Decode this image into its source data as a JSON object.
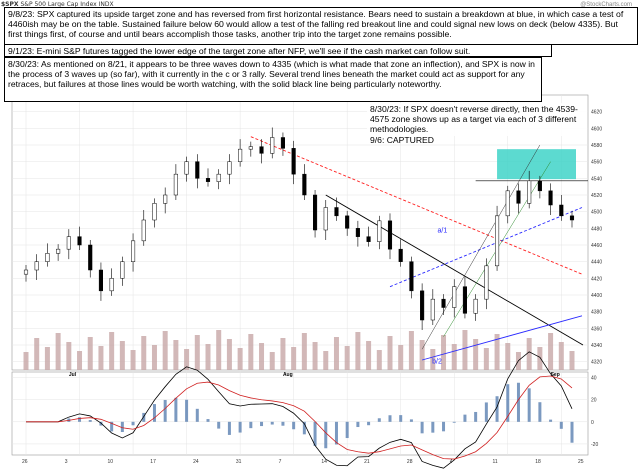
{
  "header": {
    "symbol": "$SPX",
    "name": "S&P 500 Large Cap Index",
    "exchange": "INDX",
    "watermark": "@StockCharts.com"
  },
  "annotations": [
    {
      "id": "note-9-8",
      "date": "9/8/23:",
      "text": "SPX captured its upside target zone and has reversed from first horizontal resistance.  Bears need to sustain a breakdown at blue, in which case a test of 4460ish may be on the table.  Sustained failure below 60 would allow a test of the falling red breakout line and could signal new lows on deck (below 4335).  But first things first, of course and until bears accomplish those tasks, another trip into the target zone remains possible."
    },
    {
      "id": "note-9-1",
      "date": "9/1/23:",
      "text": "E-mini S&P futures tagged the lower edge of the target zone after NFP, we'll see if the cash market can follow suit."
    },
    {
      "id": "note-8-30a",
      "date": "8/30/23:",
      "text": "As mentioned on 8/21, it appears to be three waves down to 4335 (which is what made that zone an inflection), and SPX is now in the process of 3 waves up (so far), with it currently in the c or 3 rally.  Several trend lines beneath the market could act as support for any retraces, but failures at those lines would be worth watching, with the solid black line being particularly noteworthy."
    },
    {
      "id": "note-8-30b",
      "date": "8/30/23:",
      "text": "If SPX doesn't reverse directly, then the 4539-4575 zone shows up as a target via each of 3 different methodologies.",
      "line2": "9/6:  CAPTURED"
    }
  ],
  "wave_labels": [
    "a/1",
    "b/2"
  ],
  "price_scale": [
    "4620",
    "4600",
    "4580",
    "4560",
    "4540",
    "4520",
    "4500",
    "4480",
    "4460",
    "4440",
    "4420",
    "4400",
    "4380",
    "4360",
    "4340",
    "4320"
  ],
  "macd_scale": [
    "40",
    "20",
    "0",
    "-20"
  ],
  "month_labels": [
    "Jul",
    "Aug",
    "Sep"
  ],
  "day_labels": [
    "26",
    "3",
    "10",
    "17",
    "24",
    "31",
    "7",
    "14",
    "21",
    "28",
    "4",
    "11",
    "18",
    "25"
  ],
  "colors": {
    "candle": "#000000",
    "volume": "#c7a6a6",
    "target_zone": "#3fd3c8",
    "red_line": "#ff2020",
    "blue_line": "#2a2aff",
    "black_line": "#000000",
    "grid": "#e4e4e4",
    "macd": "#000000",
    "signal": "#d02020",
    "hist": "#5a7fb0"
  },
  "chart_data": {
    "type": "candlestick",
    "title": "$SPX S&P 500 Large Cap Index INDX",
    "x": [
      "Jun 27",
      "Jun 28",
      "Jun 29",
      "Jun 30",
      "Jul 3",
      "Jul 5",
      "Jul 6",
      "Jul 7",
      "Jul 10",
      "Jul 11",
      "Jul 12",
      "Jul 13",
      "Jul 14",
      "Jul 17",
      "Jul 18",
      "Jul 19",
      "Jul 20",
      "Jul 21",
      "Jul 24",
      "Jul 25",
      "Jul 26",
      "Jul 27",
      "Jul 28",
      "Jul 31",
      "Aug 1",
      "Aug 2",
      "Aug 3",
      "Aug 4",
      "Aug 7",
      "Aug 8",
      "Aug 9",
      "Aug 10",
      "Aug 11",
      "Aug 14",
      "Aug 15",
      "Aug 16",
      "Aug 17",
      "Aug 18",
      "Aug 21",
      "Aug 22",
      "Aug 23",
      "Aug 24",
      "Aug 25",
      "Aug 28",
      "Aug 29",
      "Aug 30",
      "Aug 31",
      "Sep 1",
      "Sep 5",
      "Sep 6",
      "Sep 7",
      "Sep 8"
    ],
    "close": [
      4430,
      4440,
      4450,
      4455,
      4470,
      4460,
      4430,
      4405,
      4420,
      4440,
      4465,
      4490,
      4510,
      4520,
      4545,
      4560,
      4540,
      4536,
      4545,
      4560,
      4575,
      4578,
      4570,
      4589,
      4576,
      4545,
      4520,
      4478,
      4505,
      4495,
      4480,
      4470,
      4464,
      4489,
      4455,
      4440,
      4405,
      4370,
      4395,
      4385,
      4410,
      4378,
      4395,
      4435,
      4495,
      4525,
      4510,
      4537,
      4525,
      4508,
      4495,
      4490
    ],
    "price_axis_range": [
      4310,
      4640
    ],
    "macd_axis_range": [
      -30,
      45
    ],
    "horizontal_resistance": 4537,
    "target_zone": [
      4539,
      4575
    ],
    "wave_lows": {
      "b/2": 4335
    },
    "mentioned_levels": [
      4460,
      4335,
      4539,
      4575
    ]
  }
}
